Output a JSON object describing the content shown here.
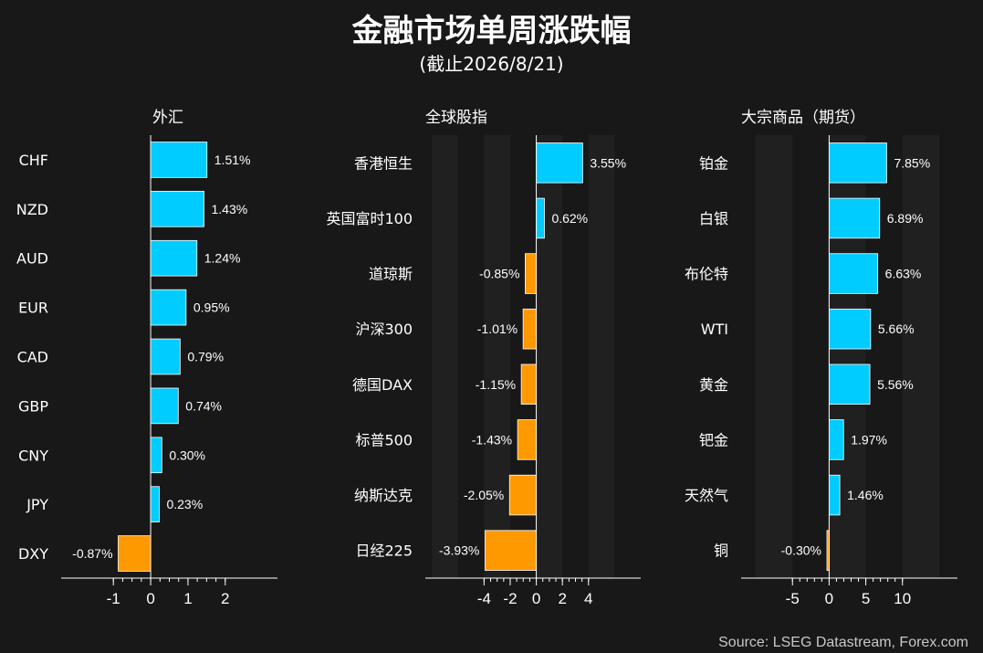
{
  "header": {
    "title": "金融市场单周涨跌幅",
    "subtitle": "(截止2026/8/21)"
  },
  "footer": {
    "source": "Source: LSEG Datastream, Forex.com"
  },
  "colors": {
    "positive": "#00ccff",
    "negative": "#ff9900",
    "background": "#181818",
    "band": "#202020"
  },
  "chart_data": [
    {
      "type": "bar",
      "orientation": "horizontal",
      "title": "外汇",
      "categories": [
        "CHF",
        "NZD",
        "AUD",
        "EUR",
        "CAD",
        "GBP",
        "CNY",
        "JPY",
        "DXY"
      ],
      "values": [
        1.51,
        1.43,
        1.24,
        0.95,
        0.79,
        0.74,
        0.3,
        0.23,
        -0.87
      ],
      "labels": [
        "1.51%",
        "1.43%",
        "1.24%",
        "0.95%",
        "0.79%",
        "0.74%",
        "0.30%",
        "0.23%",
        "-0.87%"
      ],
      "xlim": [
        -2.4,
        3.4
      ],
      "ticks": [
        -1,
        0,
        1,
        2
      ],
      "tick_labels": [
        "-1",
        "0",
        "1",
        "2"
      ],
      "minor_step": 0.25,
      "bands": false
    },
    {
      "type": "bar",
      "orientation": "horizontal",
      "title": "全球股指",
      "categories": [
        "香港恒生",
        "英国富时100",
        "道琼斯",
        "沪深300",
        "德国DAX",
        "标普500",
        "纳斯达克",
        "日经225"
      ],
      "values": [
        3.55,
        0.62,
        -0.85,
        -1.01,
        -1.15,
        -1.43,
        -2.05,
        -3.93
      ],
      "labels": [
        "3.55%",
        "0.62%",
        "-0.85%",
        "-1.01%",
        "-1.15%",
        "-1.43%",
        "-2.05%",
        "-3.93%"
      ],
      "xlim": [
        -8.5,
        8
      ],
      "ticks": [
        -4,
        -2,
        0,
        2,
        4
      ],
      "tick_labels": [
        "-4",
        "-2",
        "0",
        "2",
        "4"
      ],
      "minor_step": 0.5,
      "bands": true
    },
    {
      "type": "bar",
      "orientation": "horizontal",
      "title": "大宗商品（期货）",
      "categories": [
        "铂金",
        "白银",
        "布伦特",
        "WTI",
        "黄金",
        "钯金",
        "天然气",
        "铜"
      ],
      "values": [
        7.85,
        6.89,
        6.63,
        5.66,
        5.56,
        1.97,
        1.46,
        -0.3
      ],
      "labels": [
        "7.85%",
        "6.89%",
        "6.63%",
        "5.66%",
        "5.56%",
        "1.97%",
        "1.46%",
        "-0.30%"
      ],
      "xlim": [
        -12,
        17.5
      ],
      "ticks": [
        -5,
        0,
        5,
        10
      ],
      "tick_labels": [
        "-5",
        "0",
        "5",
        "10"
      ],
      "minor_step": 1,
      "bands": true
    }
  ]
}
